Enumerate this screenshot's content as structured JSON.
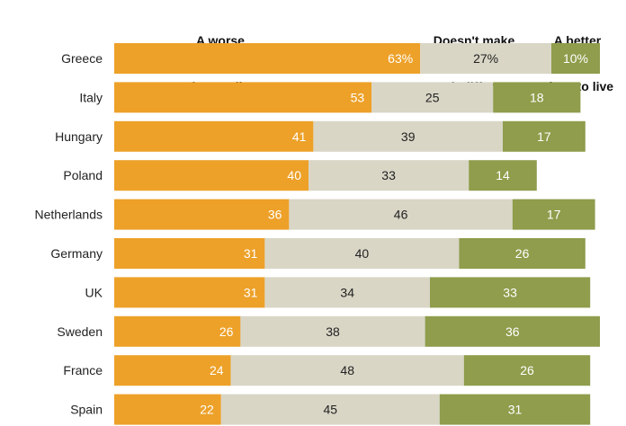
{
  "chart_data": {
    "type": "bar",
    "orientation": "horizontal",
    "stacked": true,
    "categories": [
      "Greece",
      "Italy",
      "Hungary",
      "Poland",
      "Netherlands",
      "Germany",
      "UK",
      "Sweden",
      "France",
      "Spain"
    ],
    "series": [
      {
        "name": "A worse place to live",
        "values": [
          63,
          53,
          41,
          40,
          36,
          31,
          31,
          26,
          24,
          22
        ],
        "labels": [
          "63%",
          "53",
          "41",
          "40",
          "36",
          "31",
          "31",
          "26",
          "24",
          "22"
        ]
      },
      {
        "name": "Doesn't make much difference",
        "values": [
          27,
          25,
          39,
          33,
          46,
          40,
          34,
          38,
          48,
          45
        ],
        "labels": [
          "27%",
          "25",
          "39",
          "33",
          "46",
          "40",
          "34",
          "38",
          "48",
          "45"
        ]
      },
      {
        "name": "A better place to live",
        "values": [
          10,
          18,
          17,
          14,
          17,
          26,
          33,
          36,
          26,
          31
        ],
        "labels": [
          "10%",
          "18",
          "17",
          "14",
          "17",
          "26",
          "33",
          "36",
          "26",
          "31"
        ]
      }
    ],
    "headers": [
      {
        "line1": "A worse",
        "line2": "place to live"
      },
      {
        "line1": "Doesn't make",
        "line2": "much difference"
      },
      {
        "line1": "A better",
        "line2": "place to live"
      }
    ],
    "colors": [
      "#eda129",
      "#d9d6c6",
      "#8f9d4c"
    ],
    "label_colors": [
      "#ffffff",
      "#222222",
      "#ffffff"
    ],
    "legend": "top"
  }
}
